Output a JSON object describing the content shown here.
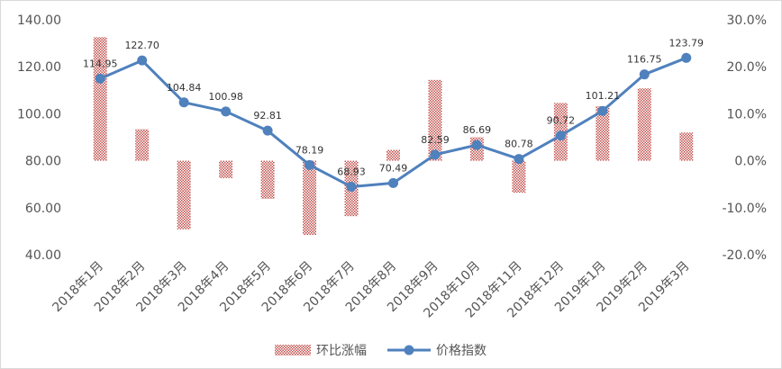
{
  "chart_data": {
    "type": "bar+line",
    "categories": [
      "2018年1月",
      "2018年2月",
      "2018年3月",
      "2018年4月",
      "2018年5月",
      "2018年6月",
      "2018年7月",
      "2018年8月",
      "2018年9月",
      "2018年10月",
      "2018年11月",
      "2018年12月",
      "2019年1月",
      "2019年2月",
      "2019年3月"
    ],
    "series": [
      {
        "name": "环比涨幅",
        "type": "bar",
        "axis": "right",
        "values": [
          26.3,
          6.7,
          -14.6,
          -3.7,
          -8.1,
          -15.8,
          -11.8,
          2.3,
          17.2,
          5.0,
          -6.8,
          12.3,
          11.6,
          15.4,
          6.0
        ],
        "color": "#c0504d"
      },
      {
        "name": "价格指数",
        "type": "line",
        "axis": "left",
        "values": [
          114.95,
          122.7,
          104.84,
          100.98,
          92.81,
          78.19,
          68.93,
          70.49,
          82.59,
          86.69,
          80.78,
          90.72,
          101.21,
          116.75,
          123.79
        ],
        "labels": [
          "114.95",
          "122.70",
          "104.84",
          "100.98",
          "92.81",
          "78.19",
          "68.93",
          "70.49",
          "82.59",
          "86.69",
          "80.78",
          "90.72",
          "101.21",
          "116.75",
          "123.79"
        ],
        "color": "#4f81bd"
      }
    ],
    "left_axis": {
      "min": 40,
      "max": 140,
      "step": 20,
      "ticks": [
        "40.00",
        "60.00",
        "80.00",
        "100.00",
        "120.00",
        "140.00"
      ]
    },
    "right_axis": {
      "min": -20,
      "max": 30,
      "step": 10,
      "ticks": [
        "-20.0%",
        "-10.0%",
        "0.0%",
        "10.0%",
        "20.0%",
        "30.0%"
      ]
    },
    "title": "",
    "xlabel": "",
    "ylabel": "",
    "legend": {
      "placement": "bottom",
      "entries": [
        "环比涨幅",
        "价格指数"
      ]
    },
    "grid": false
  }
}
